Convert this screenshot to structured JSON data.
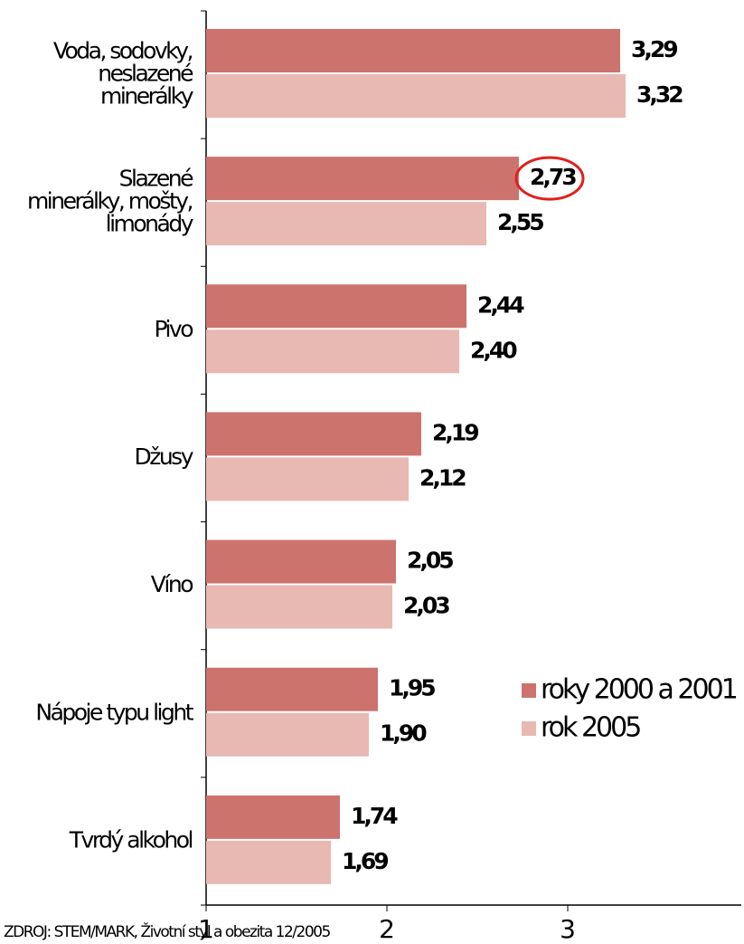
{
  "chart_data": {
    "type": "bar",
    "orientation": "horizontal",
    "categories": [
      [
        "Voda, sodovky,",
        "neslazené",
        "minerálky"
      ],
      [
        "Slazené",
        "minerálky, mošty,",
        "limonády"
      ],
      [
        "Pivo"
      ],
      [
        "Džusy"
      ],
      [
        "Víno"
      ],
      [
        "Nápoje typu light"
      ],
      [
        "Tvrdý alkohol"
      ]
    ],
    "series": [
      {
        "name": "roky 2000 a 2001",
        "color": "#cc736e",
        "values": [
          3.29,
          2.73,
          2.44,
          2.19,
          2.05,
          1.95,
          1.74
        ],
        "value_labels": [
          "3,29",
          "2,73",
          "2,44",
          "2,19",
          "2,05",
          "1,95",
          "1,74"
        ]
      },
      {
        "name": "rok 2005",
        "color": "#e8b8b2",
        "values": [
          3.32,
          2.55,
          2.4,
          2.12,
          2.03,
          1.9,
          1.69
        ],
        "value_labels": [
          "3,32",
          "2,55",
          "2,40",
          "2,12",
          "2,03",
          "1,90",
          "1,69"
        ]
      }
    ],
    "xlim": [
      1,
      3.96
    ],
    "xticks": [
      1,
      2,
      3
    ],
    "source": "ZDROJ: STEM/MARK, Životní styl a obezita 12/2005"
  }
}
